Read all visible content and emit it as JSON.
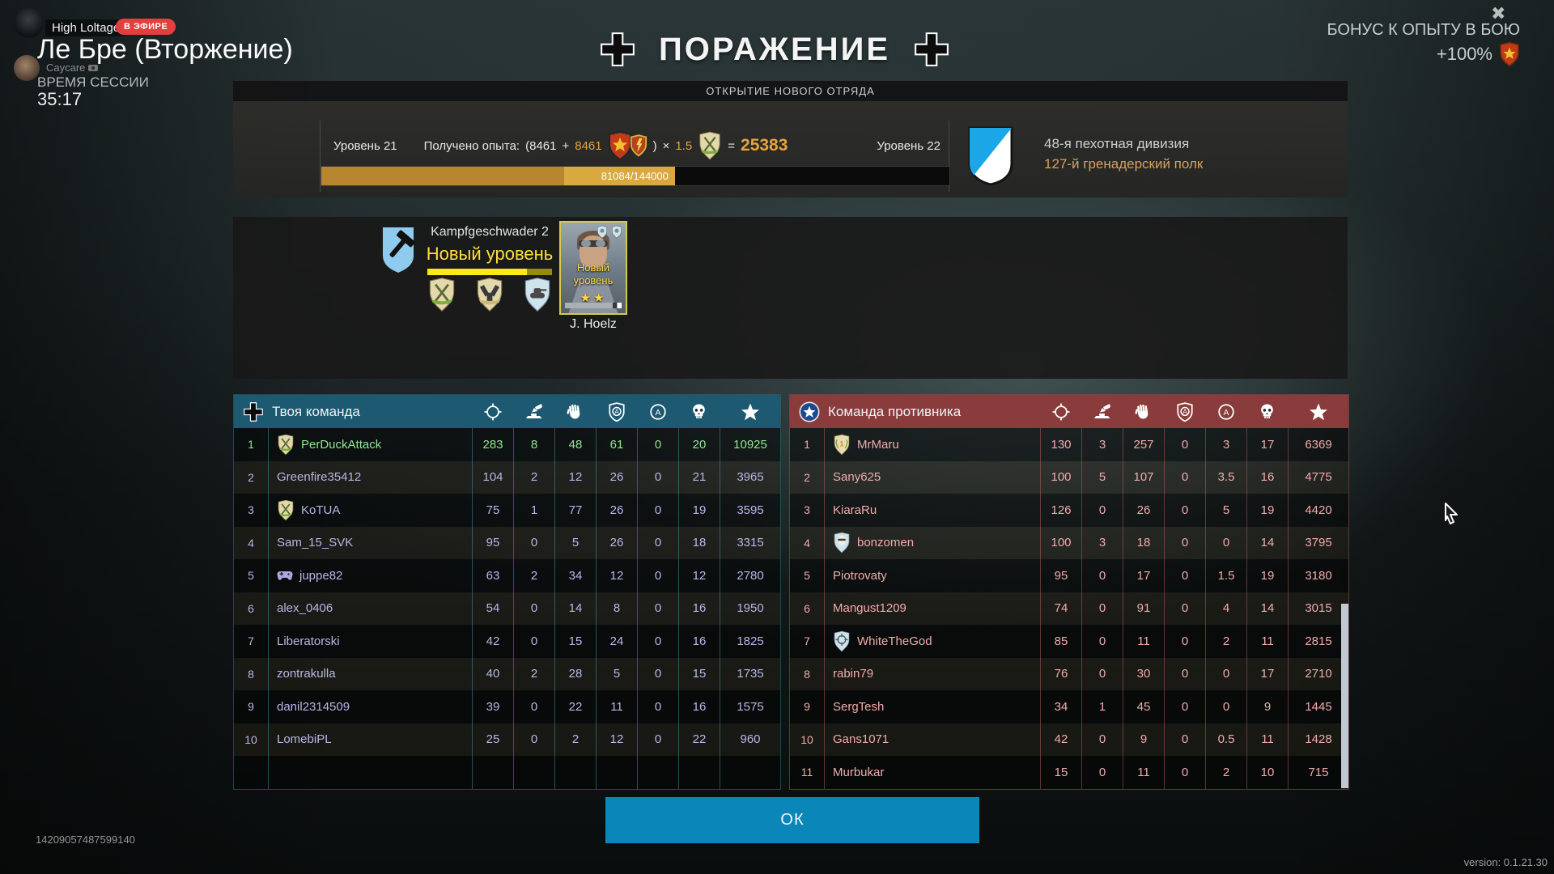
{
  "stream": {
    "streamer": "High Loltage",
    "live_badge": "В ЭФИРЕ",
    "viewer": "Caycare",
    "session_label": "ВРЕМЯ СЕССИИ",
    "session_time": "35:17"
  },
  "header": {
    "map_title": "Ле Бре (Вторжение)",
    "result_title": "ПОРАЖЕНИЕ",
    "bonus_label": "БОНУС К ОПЫТУ В БОЮ",
    "bonus_value": "+100%",
    "close_glyph": "✖"
  },
  "unlock_banner": "ОТКРЫТИЕ НОВОГО ОТРЯДА",
  "xp": {
    "level_before": "Уровень 21",
    "level_after": "Уровень 22",
    "gained_label": "Получено опыта:",
    "open": "(8461",
    "plus": "+",
    "bonus": "8461",
    "close": ")",
    "times": "×",
    "multiplier": "1.5",
    "equals": "=",
    "total": "25383",
    "progress_label": "81084/144000",
    "base_pct": 38.7,
    "total_pct": 56.3
  },
  "division": {
    "name": "48-я пехотная дивизия",
    "regiment": "127-й гренадерский полк"
  },
  "squad": {
    "name": "Kampfgeschwader 2",
    "new_level_label": "Новый уровень",
    "bar_pct": 80,
    "soldier": {
      "new_level_line1": "Новый",
      "new_level_line2": "уровень",
      "stars": "★★",
      "name": "J. Hoelz"
    }
  },
  "scoreboard": {
    "columns": [
      "crosshair-icon",
      "vehicle-kills-icon",
      "assists-icon",
      "capture-shield-icon",
      "capture-zone-icon",
      "deaths-icon",
      "score-icon"
    ],
    "your_team": {
      "title": "Твоя команда",
      "rows": [
        {
          "rank": "1",
          "name": "PerDuckAttack",
          "badge": "rifles",
          "highlight": true,
          "stats": [
            "283",
            "8",
            "48",
            "61",
            "0",
            "20",
            "10925"
          ]
        },
        {
          "rank": "2",
          "name": "Greenfire35412",
          "badge": null,
          "highlight": false,
          "stats": [
            "104",
            "2",
            "12",
            "26",
            "0",
            "21",
            "3965"
          ]
        },
        {
          "rank": "3",
          "name": "KoTUA",
          "badge": "rifles",
          "highlight": false,
          "stats": [
            "75",
            "1",
            "77",
            "26",
            "0",
            "19",
            "3595"
          ]
        },
        {
          "rank": "4",
          "name": "Sam_15_SVK",
          "badge": null,
          "highlight": false,
          "stats": [
            "95",
            "0",
            "5",
            "26",
            "0",
            "18",
            "3315"
          ]
        },
        {
          "rank": "5",
          "name": "juppe82",
          "badge": "gamepad",
          "highlight": false,
          "stats": [
            "63",
            "2",
            "34",
            "12",
            "0",
            "12",
            "2780"
          ]
        },
        {
          "rank": "6",
          "name": "alex_0406",
          "badge": null,
          "highlight": false,
          "stats": [
            "54",
            "0",
            "14",
            "8",
            "0",
            "16",
            "1950"
          ]
        },
        {
          "rank": "7",
          "name": "Liberatorski",
          "badge": null,
          "highlight": false,
          "stats": [
            "42",
            "0",
            "15",
            "24",
            "0",
            "16",
            "1825"
          ]
        },
        {
          "rank": "8",
          "name": "zontrakulla",
          "badge": null,
          "highlight": false,
          "stats": [
            "40",
            "2",
            "28",
            "5",
            "0",
            "15",
            "1735"
          ]
        },
        {
          "rank": "9",
          "name": "danil2314509",
          "badge": null,
          "highlight": false,
          "stats": [
            "39",
            "0",
            "22",
            "11",
            "0",
            "16",
            "1575"
          ]
        },
        {
          "rank": "10",
          "name": "LomebiPL",
          "badge": null,
          "highlight": false,
          "stats": [
            "25",
            "0",
            "2",
            "12",
            "0",
            "22",
            "960"
          ]
        }
      ]
    },
    "enemy_team": {
      "title": "Команда противника",
      "rows": [
        {
          "rank": "1",
          "name": "MrMaru",
          "badge": "rank1",
          "highlight": false,
          "stats": [
            "130",
            "3",
            "257",
            "0",
            "3",
            "17",
            "6369"
          ]
        },
        {
          "rank": "2",
          "name": "Sany625",
          "badge": null,
          "highlight": false,
          "stats": [
            "100",
            "5",
            "107",
            "0",
            "3.5",
            "16",
            "4775"
          ]
        },
        {
          "rank": "3",
          "name": "KiaraRu",
          "badge": null,
          "highlight": false,
          "stats": [
            "126",
            "0",
            "26",
            "0",
            "5",
            "19",
            "4420"
          ]
        },
        {
          "rank": "4",
          "name": "bonzomen",
          "badge": "mask",
          "highlight": false,
          "stats": [
            "100",
            "3",
            "18",
            "0",
            "0",
            "14",
            "3795"
          ]
        },
        {
          "rank": "5",
          "name": "Piotrovaty",
          "badge": null,
          "highlight": false,
          "stats": [
            "95",
            "0",
            "17",
            "0",
            "1.5",
            "19",
            "3180"
          ]
        },
        {
          "rank": "6",
          "name": "Mangust1209",
          "badge": null,
          "highlight": false,
          "stats": [
            "74",
            "0",
            "91",
            "0",
            "4",
            "14",
            "3015"
          ]
        },
        {
          "rank": "7",
          "name": "WhiteTheGod",
          "badge": "crosshair",
          "highlight": false,
          "stats": [
            "85",
            "0",
            "11",
            "0",
            "2",
            "11",
            "2815"
          ]
        },
        {
          "rank": "8",
          "name": "rabin79",
          "badge": null,
          "highlight": false,
          "stats": [
            "76",
            "0",
            "30",
            "0",
            "0",
            "17",
            "2710"
          ]
        },
        {
          "rank": "9",
          "name": "SergTesh",
          "badge": null,
          "highlight": false,
          "stats": [
            "34",
            "1",
            "45",
            "0",
            "0",
            "9",
            "1445"
          ]
        },
        {
          "rank": "10",
          "name": "Gans1071",
          "badge": null,
          "highlight": false,
          "stats": [
            "42",
            "0",
            "9",
            "0",
            "0.5",
            "11",
            "1428"
          ]
        },
        {
          "rank": "11",
          "name": "Murbukar",
          "badge": null,
          "highlight": false,
          "stats": [
            "15",
            "0",
            "11",
            "0",
            "2",
            "10",
            "715"
          ]
        }
      ]
    }
  },
  "footer": {
    "ok_label": "ОК",
    "session_id": "14209057487599140",
    "version": "version: 0.1.21.30"
  },
  "colors": {
    "team_accent": "#1d5a72",
    "enemy_accent": "#8a3b3b",
    "xp_base_gold": "#b8862e",
    "xp_gain_gold": "#d9a93f",
    "ok_blue": "#0b86b8",
    "highlight_green": "#92e692",
    "team_text": "#b7b7e8",
    "enemy_text": "#f2abab",
    "level_yellow": "#ffdf3d",
    "bonus_orange": "#e8a33d",
    "live_red": "#e33f3f"
  }
}
